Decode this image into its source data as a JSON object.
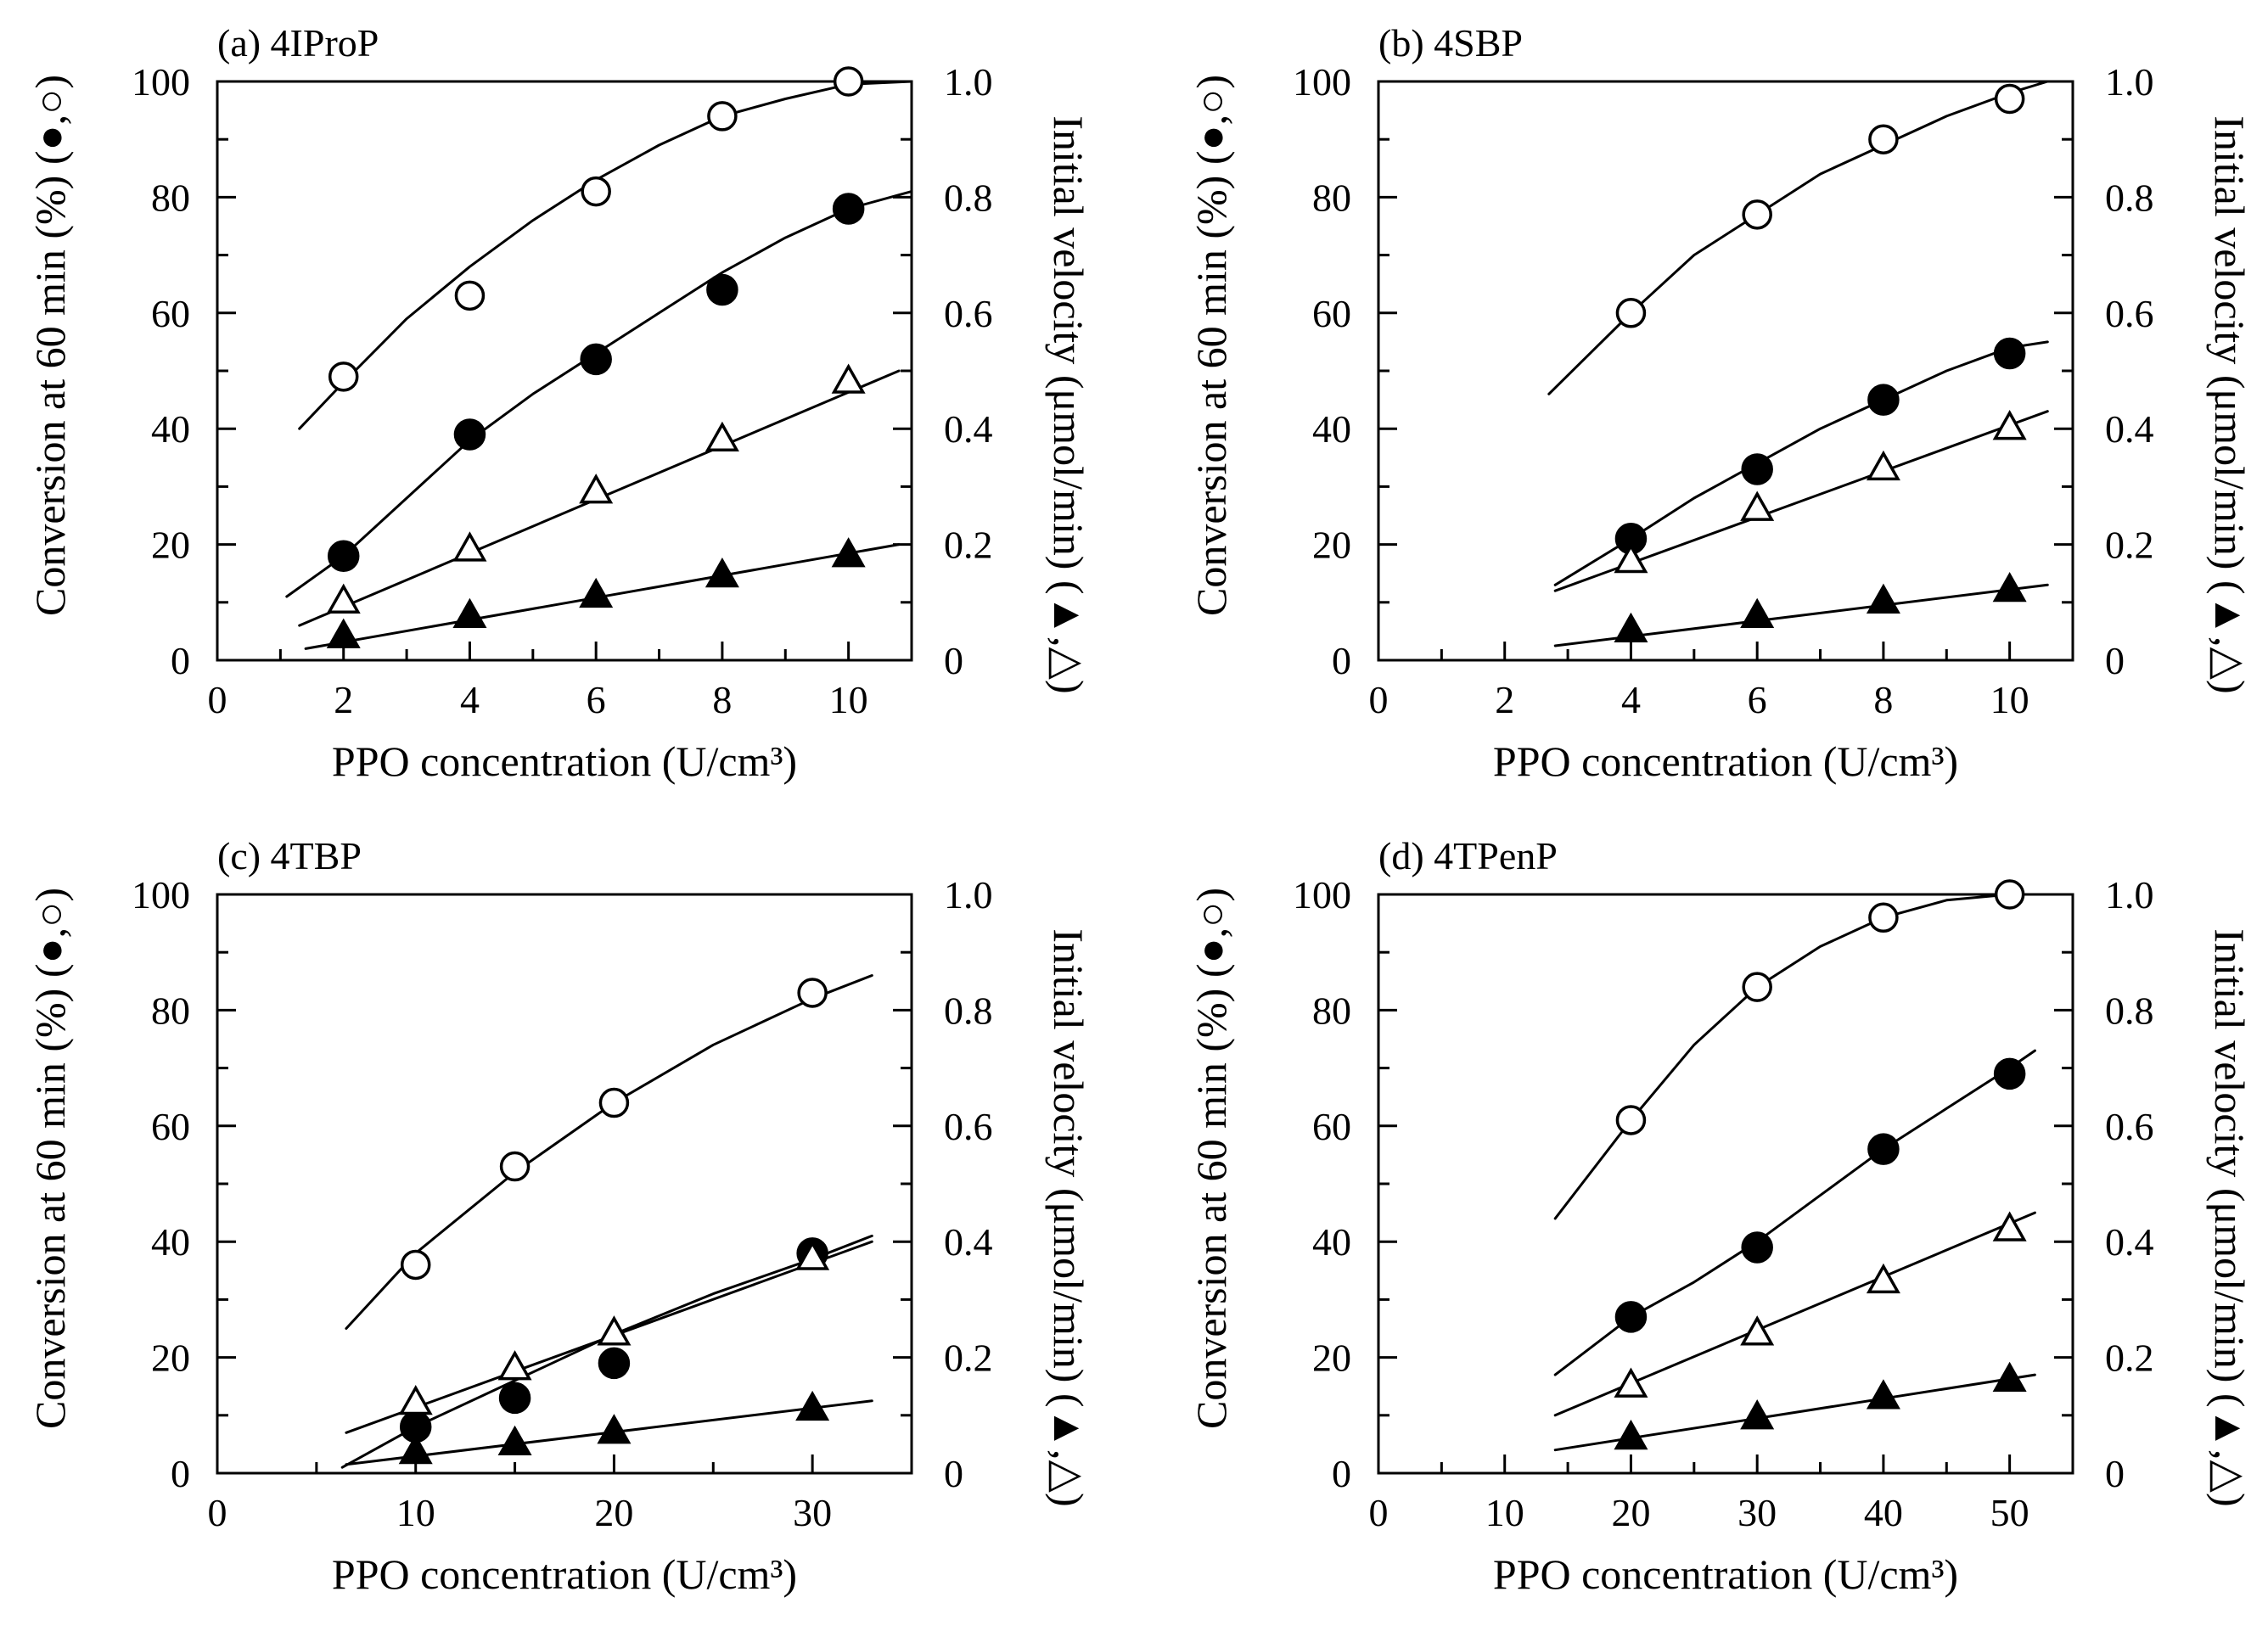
{
  "chart_data": [
    {
      "type": "scatter",
      "title": "(a) 4IProP",
      "xlabel": "PPO concentration (U/cm³)",
      "ylabel_left": "Conversion at 60 min (%) (●,○)",
      "ylabel_right": "Initial velocity (μmol/min) (▲,△)",
      "xlim": [
        0,
        11
      ],
      "ylim_left": [
        0,
        100
      ],
      "ylim_right": [
        0,
        1.0
      ],
      "xticks": [
        0,
        2,
        4,
        6,
        8,
        10
      ],
      "yticks_left": [
        0,
        20,
        40,
        60,
        80,
        100
      ],
      "yticks_right": [
        0,
        0.2,
        0.4,
        0.6,
        0.8,
        1.0
      ],
      "grid": false,
      "series": [
        {
          "marker": "open-circle",
          "axis": "left",
          "x": [
            2,
            4,
            6,
            8,
            10
          ],
          "y": [
            49,
            63,
            81,
            94,
            100
          ],
          "fit": {
            "x": [
              1.3,
              2,
              3,
              4,
              5,
              6,
              7,
              8,
              9,
              10,
              11
            ],
            "y": [
              40,
              48,
              59,
              68,
              76,
              83,
              89,
              94,
              97,
              99.5,
              100
            ]
          }
        },
        {
          "marker": "filled-circle",
          "axis": "left",
          "x": [
            2,
            4,
            6,
            8,
            10
          ],
          "y": [
            18,
            39,
            52,
            64,
            78
          ],
          "fit": {
            "x": [
              1.1,
              2,
              3,
              4,
              5,
              6,
              7,
              8,
              9,
              10,
              11
            ],
            "y": [
              11,
              18,
              28,
              38,
              46,
              53,
              60,
              67,
              73,
              78,
              81
            ]
          }
        },
        {
          "marker": "open-triangle",
          "axis": "right",
          "x": [
            2,
            4,
            6,
            8,
            10
          ],
          "y": [
            0.1,
            0.19,
            0.29,
            0.38,
            0.48
          ],
          "fit": {
            "x": [
              1.3,
              10.8
            ],
            "y": [
              0.06,
              0.5
            ]
          }
        },
        {
          "marker": "filled-triangle",
          "axis": "right",
          "x": [
            2,
            4,
            6,
            8,
            10
          ],
          "y": [
            0.04,
            0.075,
            0.11,
            0.145,
            0.18
          ],
          "fit": {
            "x": [
              1.4,
              10.8
            ],
            "y": [
              0.02,
              0.2
            ]
          }
        }
      ]
    },
    {
      "type": "scatter",
      "title": "(b) 4SBP",
      "xlabel": "PPO concentration (U/cm³)",
      "ylabel_left": "Conversion at 60 min (%) (●,○)",
      "ylabel_right": "Initial velocity (μmol/min) (▲,△)",
      "xlim": [
        0,
        11
      ],
      "ylim_left": [
        0,
        100
      ],
      "ylim_right": [
        0,
        1.0
      ],
      "xticks": [
        0,
        2,
        4,
        6,
        8,
        10
      ],
      "yticks_left": [
        0,
        20,
        40,
        60,
        80,
        100
      ],
      "yticks_right": [
        0,
        0.2,
        0.4,
        0.6,
        0.8,
        1.0
      ],
      "grid": false,
      "series": [
        {
          "marker": "open-circle",
          "axis": "left",
          "x": [
            4,
            6,
            8,
            10
          ],
          "y": [
            60,
            77,
            90,
            97
          ],
          "fit": {
            "x": [
              2.7,
              4,
              5,
              6,
              7,
              8,
              9,
              10,
              10.6
            ],
            "y": [
              46,
              60,
              70,
              77,
              84,
              89,
              94,
              98,
              100
            ]
          }
        },
        {
          "marker": "filled-circle",
          "axis": "left",
          "x": [
            4,
            6,
            8,
            10
          ],
          "y": [
            21,
            33,
            45,
            53
          ],
          "fit": {
            "x": [
              2.8,
              4,
              5,
              6,
              7,
              8,
              9,
              10,
              10.6
            ],
            "y": [
              13,
              21,
              28,
              34,
              40,
              45,
              50,
              54,
              55
            ]
          }
        },
        {
          "marker": "open-triangle",
          "axis": "right",
          "x": [
            4,
            6,
            8,
            10
          ],
          "y": [
            0.17,
            0.26,
            0.33,
            0.4
          ],
          "fit": {
            "x": [
              2.8,
              10.6
            ],
            "y": [
              0.12,
              0.43
            ]
          }
        },
        {
          "marker": "filled-triangle",
          "axis": "right",
          "x": [
            4,
            6,
            8,
            10
          ],
          "y": [
            0.05,
            0.075,
            0.1,
            0.12
          ],
          "fit": {
            "x": [
              2.8,
              10.6
            ],
            "y": [
              0.025,
              0.13
            ]
          }
        }
      ]
    },
    {
      "type": "scatter",
      "title": "(c) 4TBP",
      "xlabel": "PPO concentration (U/cm³)",
      "ylabel_left": "Conversion at 60 min (%) (●,○)",
      "ylabel_right": "Initial velocity (μmol/min) (▲,△)",
      "xlim": [
        0,
        35
      ],
      "ylim_left": [
        0,
        100
      ],
      "ylim_right": [
        0,
        1.0
      ],
      "xticks": [
        0,
        10,
        20,
        30
      ],
      "yticks_left": [
        0,
        20,
        40,
        60,
        80,
        100
      ],
      "yticks_right": [
        0,
        0.2,
        0.4,
        0.6,
        0.8,
        1.0
      ],
      "grid": false,
      "series": [
        {
          "marker": "open-circle",
          "axis": "left",
          "x": [
            10,
            15,
            20,
            30
          ],
          "y": [
            36,
            53,
            64,
            83
          ],
          "fit": {
            "x": [
              6.5,
              10,
              15,
              20,
              25,
              30,
              33
            ],
            "y": [
              25,
              38,
              52,
              64,
              74,
              82,
              86
            ]
          }
        },
        {
          "marker": "filled-circle",
          "axis": "left",
          "x": [
            10,
            15,
            20,
            30
          ],
          "y": [
            8,
            13,
            19,
            38
          ],
          "fit": {
            "x": [
              6.3,
              10,
              15,
              20,
              25,
              30,
              33
            ],
            "y": [
              1,
              8,
              16,
              24,
              31,
              37,
              41
            ]
          }
        },
        {
          "marker": "open-triangle",
          "axis": "right",
          "x": [
            10,
            15,
            20,
            30
          ],
          "y": [
            0.12,
            0.18,
            0.24,
            0.37
          ],
          "fit": {
            "x": [
              6.5,
              33
            ],
            "y": [
              0.07,
              0.4
            ]
          }
        },
        {
          "marker": "filled-triangle",
          "axis": "right",
          "x": [
            10,
            15,
            20,
            30
          ],
          "y": [
            0.035,
            0.05,
            0.07,
            0.11
          ],
          "fit": {
            "x": [
              6.5,
              33
            ],
            "y": [
              0.015,
              0.125
            ]
          }
        }
      ]
    },
    {
      "type": "scatter",
      "title": "(d) 4TPenP",
      "xlabel": "PPO concentration (U/cm³)",
      "ylabel_left": "Conversion at 60 min (%) (●,○)",
      "ylabel_right": "Initial velocity (μmol/min) (▲,△)",
      "xlim": [
        0,
        55
      ],
      "ylim_left": [
        0,
        100
      ],
      "ylim_right": [
        0,
        1.0
      ],
      "xticks": [
        0,
        10,
        20,
        30,
        40,
        50
      ],
      "yticks_left": [
        0,
        20,
        40,
        60,
        80,
        100
      ],
      "yticks_right": [
        0,
        0.2,
        0.4,
        0.6,
        0.8,
        1.0
      ],
      "grid": false,
      "series": [
        {
          "marker": "open-circle",
          "axis": "left",
          "x": [
            20,
            30,
            40,
            50
          ],
          "y": [
            61,
            84,
            96,
            100
          ],
          "fit": {
            "x": [
              14,
              20,
              25,
              30,
              35,
              40,
              45,
              50,
              52
            ],
            "y": [
              44,
              61,
              74,
              84,
              91,
              96,
              99,
              100,
              100
            ]
          }
        },
        {
          "marker": "filled-circle",
          "axis": "left",
          "x": [
            20,
            30,
            40,
            50
          ],
          "y": [
            27,
            39,
            56,
            69
          ],
          "fit": {
            "x": [
              14,
              20,
              25,
              30,
              35,
              40,
              45,
              50,
              52
            ],
            "y": [
              17,
              27,
              33,
              40,
              48,
              56,
              63,
              70,
              73
            ]
          }
        },
        {
          "marker": "open-triangle",
          "axis": "right",
          "x": [
            20,
            30,
            40,
            50
          ],
          "y": [
            0.15,
            0.24,
            0.33,
            0.42
          ],
          "fit": {
            "x": [
              14,
              52
            ],
            "y": [
              0.1,
              0.45
            ]
          }
        },
        {
          "marker": "filled-triangle",
          "axis": "right",
          "x": [
            20,
            30,
            40,
            50
          ],
          "y": [
            0.06,
            0.095,
            0.13,
            0.16
          ],
          "fit": {
            "x": [
              14,
              52
            ],
            "y": [
              0.04,
              0.17
            ]
          }
        }
      ]
    }
  ]
}
